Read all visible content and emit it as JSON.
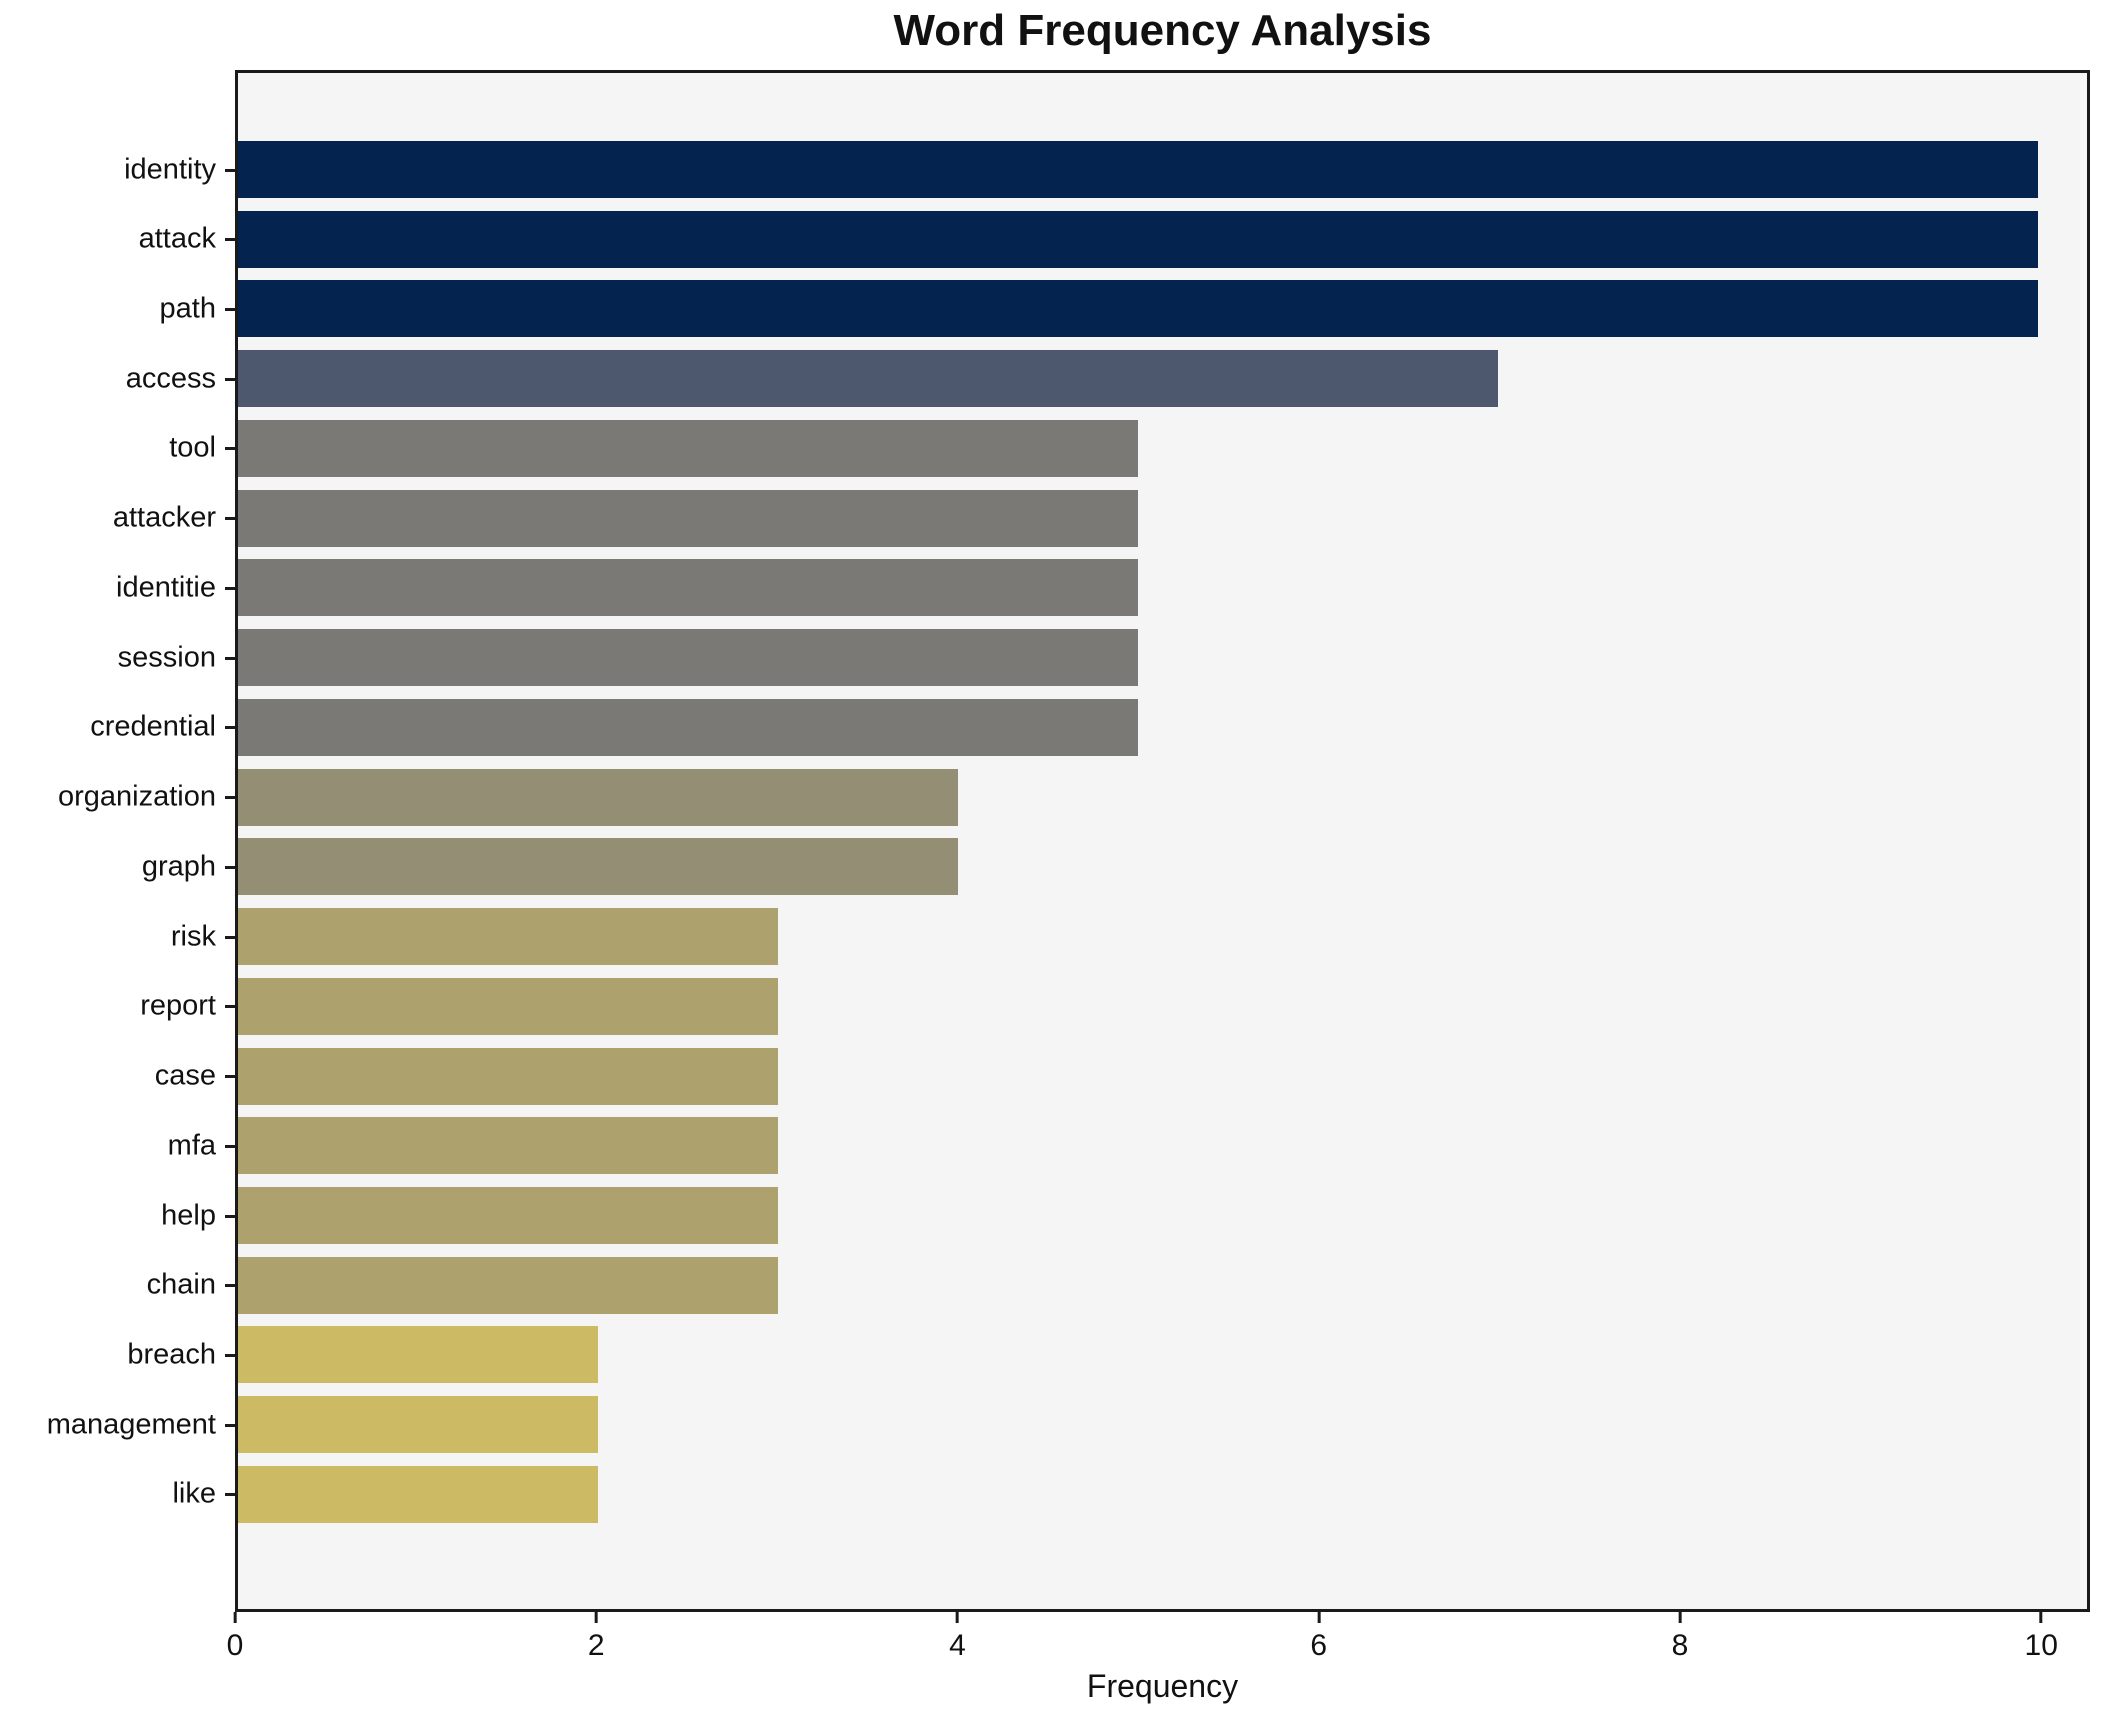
{
  "title": "Word Frequency Analysis",
  "chart_data": {
    "type": "bar",
    "orientation": "horizontal",
    "title": "Word Frequency Analysis",
    "xlabel": "Frequency",
    "ylabel": "",
    "categories": [
      "identity",
      "attack",
      "path",
      "access",
      "tool",
      "attacker",
      "identitie",
      "session",
      "credential",
      "organization",
      "graph",
      "risk",
      "report",
      "case",
      "mfa",
      "help",
      "chain",
      "breach",
      "management",
      "like"
    ],
    "values": [
      10,
      10,
      10,
      7,
      5,
      5,
      5,
      5,
      5,
      4,
      4,
      3,
      3,
      3,
      3,
      3,
      3,
      2,
      2,
      2
    ],
    "bar_colors": [
      "#04234e",
      "#04234e",
      "#04234e",
      "#4d576e",
      "#7a7976",
      "#7a7976",
      "#7a7976",
      "#7a7976",
      "#7a7976",
      "#938e74",
      "#938e74",
      "#ada26e",
      "#ada26e",
      "#ada26e",
      "#ada26e",
      "#ada26e",
      "#ada26e",
      "#ccba64",
      "#ccba64",
      "#ccba64"
    ],
    "xticks": [
      0,
      2,
      4,
      6,
      8,
      10
    ],
    "xlim": [
      0,
      10.27
    ],
    "grid": false,
    "legend_position": "none",
    "plot_background": "#f5f5f6",
    "figure_background": "#ffffff",
    "spine_color": "#1a1a1a"
  }
}
